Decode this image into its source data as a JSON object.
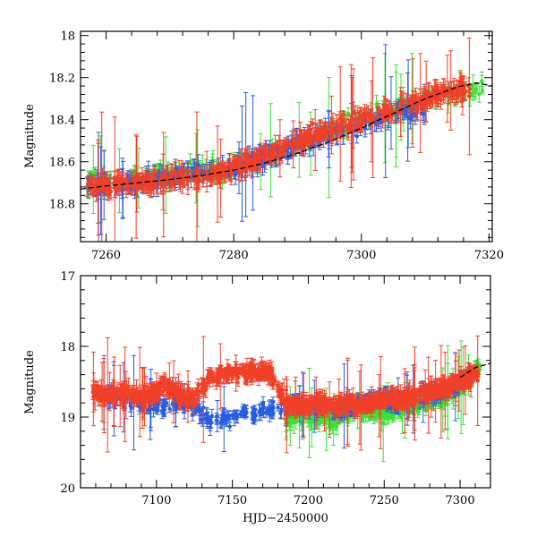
{
  "chart_data": [
    {
      "type": "scatter",
      "panel": "top",
      "title": "",
      "xlabel": "",
      "ylabel": "Magnitude",
      "xlim": [
        7256,
        7320.5
      ],
      "ylim": [
        18.98,
        17.98
      ],
      "y_inverted": true,
      "xticks": [
        7260,
        7280,
        7300,
        7320
      ],
      "xtick_labels": [
        "7260",
        "7280",
        "7300",
        "7320"
      ],
      "yticks": [
        18.0,
        18.2,
        18.4,
        18.6,
        18.8
      ],
      "ytick_labels": [
        "18",
        "18.2",
        "18.4",
        "18.6",
        "18.8"
      ],
      "grid": false,
      "series_colors": {
        "red": "#f0402a",
        "blue": "#2a5ce0",
        "green": "#3fe03a",
        "fit": "#000000"
      },
      "series": [
        {
          "name": "fit-curve",
          "style": "dashed",
          "color": "#000000",
          "x": [
            7256,
            7260,
            7265,
            7270,
            7275,
            7280,
            7285,
            7290,
            7295,
            7300,
            7305,
            7310,
            7315,
            7318,
            7320.5
          ],
          "y": [
            18.73,
            18.715,
            18.7,
            18.685,
            18.665,
            18.64,
            18.605,
            18.56,
            18.505,
            18.44,
            18.37,
            18.3,
            18.245,
            18.225,
            18.24
          ]
        },
        {
          "name": "red-band",
          "color": "#f0402a",
          "x": [
            7257,
            7260,
            7263,
            7266,
            7269,
            7272,
            7275,
            7278,
            7281,
            7284,
            7287,
            7290,
            7293,
            7296,
            7299,
            7302,
            7305,
            7308,
            7311,
            7314,
            7317
          ],
          "y": [
            18.72,
            18.71,
            18.7,
            18.7,
            18.69,
            18.68,
            18.67,
            18.65,
            18.62,
            18.59,
            18.55,
            18.51,
            18.47,
            18.44,
            18.41,
            18.38,
            18.35,
            18.32,
            18.29,
            18.27,
            18.25
          ]
        },
        {
          "name": "blue-band",
          "color": "#2a5ce0",
          "x": [
            7257,
            7262,
            7267,
            7272,
            7277,
            7282,
            7287,
            7292,
            7297,
            7302,
            7306,
            7310
          ],
          "y": [
            18.72,
            18.71,
            18.69,
            18.67,
            18.65,
            18.61,
            18.56,
            18.5,
            18.45,
            18.41,
            18.37,
            18.34
          ]
        },
        {
          "name": "green-band",
          "color": "#3fe03a",
          "x": [
            7257,
            7276,
            7280,
            7284,
            7288,
            7292,
            7296,
            7300,
            7304,
            7308,
            7312,
            7316,
            7319
          ],
          "y": [
            18.7,
            18.64,
            18.62,
            18.58,
            18.54,
            18.5,
            18.45,
            18.4,
            18.36,
            18.32,
            18.29,
            18.27,
            18.25
          ]
        }
      ]
    },
    {
      "type": "scatter",
      "panel": "bottom",
      "title": "",
      "xlabel": "HJD−2450000",
      "ylabel": "Magnitude",
      "xlim": [
        7050,
        7320
      ],
      "ylim": [
        20,
        17
      ],
      "y_inverted": true,
      "xticks": [
        7100,
        7150,
        7200,
        7250,
        7300
      ],
      "xtick_labels": [
        "7100",
        "7150",
        "7200",
        "7250",
        "7300"
      ],
      "yticks": [
        17,
        18,
        19,
        20
      ],
      "ytick_labels": [
        "17",
        "18",
        "19",
        "20"
      ],
      "grid": false,
      "series": [
        {
          "name": "fit-curve",
          "style": "dashed",
          "color": "#000000",
          "x": [
            7300,
            7310,
            7320
          ],
          "y": [
            18.44,
            18.3,
            18.24
          ]
        },
        {
          "name": "red-band",
          "color": "#f0402a",
          "x": [
            7058,
            7065,
            7075,
            7085,
            7095,
            7105,
            7115,
            7125,
            7135,
            7145,
            7155,
            7165,
            7175,
            7185,
            7195,
            7205,
            7215,
            7225,
            7235,
            7245,
            7255,
            7265,
            7275,
            7285,
            7295,
            7305,
            7312
          ],
          "y": [
            18.65,
            18.68,
            18.66,
            18.67,
            18.7,
            18.55,
            18.7,
            18.72,
            18.45,
            18.4,
            18.38,
            18.35,
            18.4,
            18.8,
            18.85,
            18.8,
            18.85,
            18.82,
            18.84,
            18.78,
            18.75,
            18.72,
            18.68,
            18.62,
            18.55,
            18.45,
            18.38
          ]
        },
        {
          "name": "blue-band",
          "color": "#2a5ce0",
          "x": [
            7065,
            7080,
            7095,
            7110,
            7125,
            7135,
            7150,
            7165,
            7180,
            7190,
            7205,
            7220,
            7235,
            7245,
            7260,
            7275,
            7290,
            7305
          ],
          "y": [
            18.7,
            18.75,
            18.85,
            18.8,
            18.85,
            19.05,
            19.0,
            18.95,
            18.9,
            18.8,
            18.85,
            18.9,
            18.8,
            18.75,
            18.78,
            18.72,
            18.65,
            18.45
          ]
        },
        {
          "name": "green-band",
          "color": "#3fe03a",
          "x": [
            7185,
            7195,
            7205,
            7215,
            7225,
            7235,
            7245,
            7255,
            7265,
            7275,
            7285,
            7295,
            7305,
            7313
          ],
          "y": [
            19.05,
            18.95,
            19.0,
            19.05,
            18.95,
            18.9,
            18.95,
            18.9,
            18.85,
            18.8,
            18.75,
            18.65,
            18.45,
            18.3
          ]
        }
      ]
    }
  ]
}
